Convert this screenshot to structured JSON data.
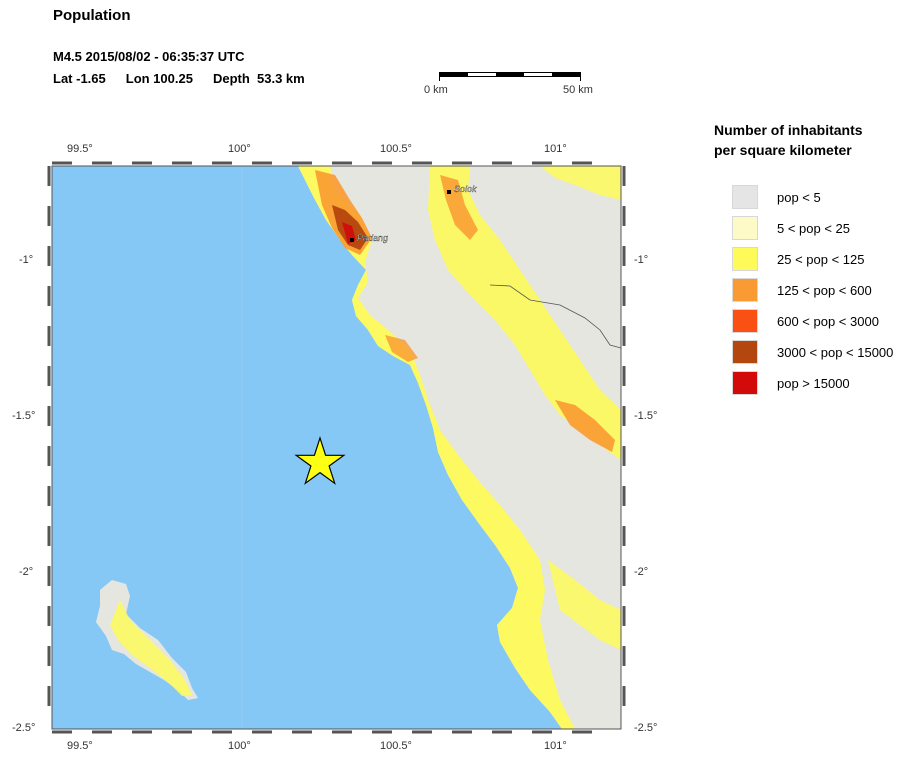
{
  "header": {
    "title": "Population",
    "event_line": "M4.5  2015/08/02 - 06:35:37 UTC",
    "lat": "Lat -1.65",
    "lon": "Lon 100.25",
    "depth": "Depth  53.3 km"
  },
  "scalebar": {
    "start_label": "0 km",
    "end_label": "50 km"
  },
  "map": {
    "lon_ticks": [
      "99.5°",
      "100°",
      "100.5°",
      "101°"
    ],
    "lat_ticks": [
      "-1°",
      "-1.5°",
      "-2°",
      "-2.5°"
    ],
    "cities": [
      "Padang",
      "Solok"
    ],
    "epicenter": {
      "lat": -1.65,
      "lon": 100.25
    },
    "colors": {
      "ocean": "#86c8f5",
      "land": "#e6e6e0",
      "epicenter": "#ffff14"
    }
  },
  "legend": {
    "title_line1": "Number of inhabitants",
    "title_line2": "per square kilometer",
    "items": [
      {
        "label": "pop < 5",
        "color": "#e5e5e5"
      },
      {
        "label": "5 < pop < 25",
        "color": "#fdfac8"
      },
      {
        "label": "25 < pop < 125",
        "color": "#fdfa5a"
      },
      {
        "label": "125 < pop < 600",
        "color": "#fa9a32"
      },
      {
        "label": "600 < pop < 3000",
        "color": "#fa5014"
      },
      {
        "label": "3000 < pop < 15000",
        "color": "#b4460f"
      },
      {
        "label": "pop > 15000",
        "color": "#d20a0a"
      }
    ]
  }
}
